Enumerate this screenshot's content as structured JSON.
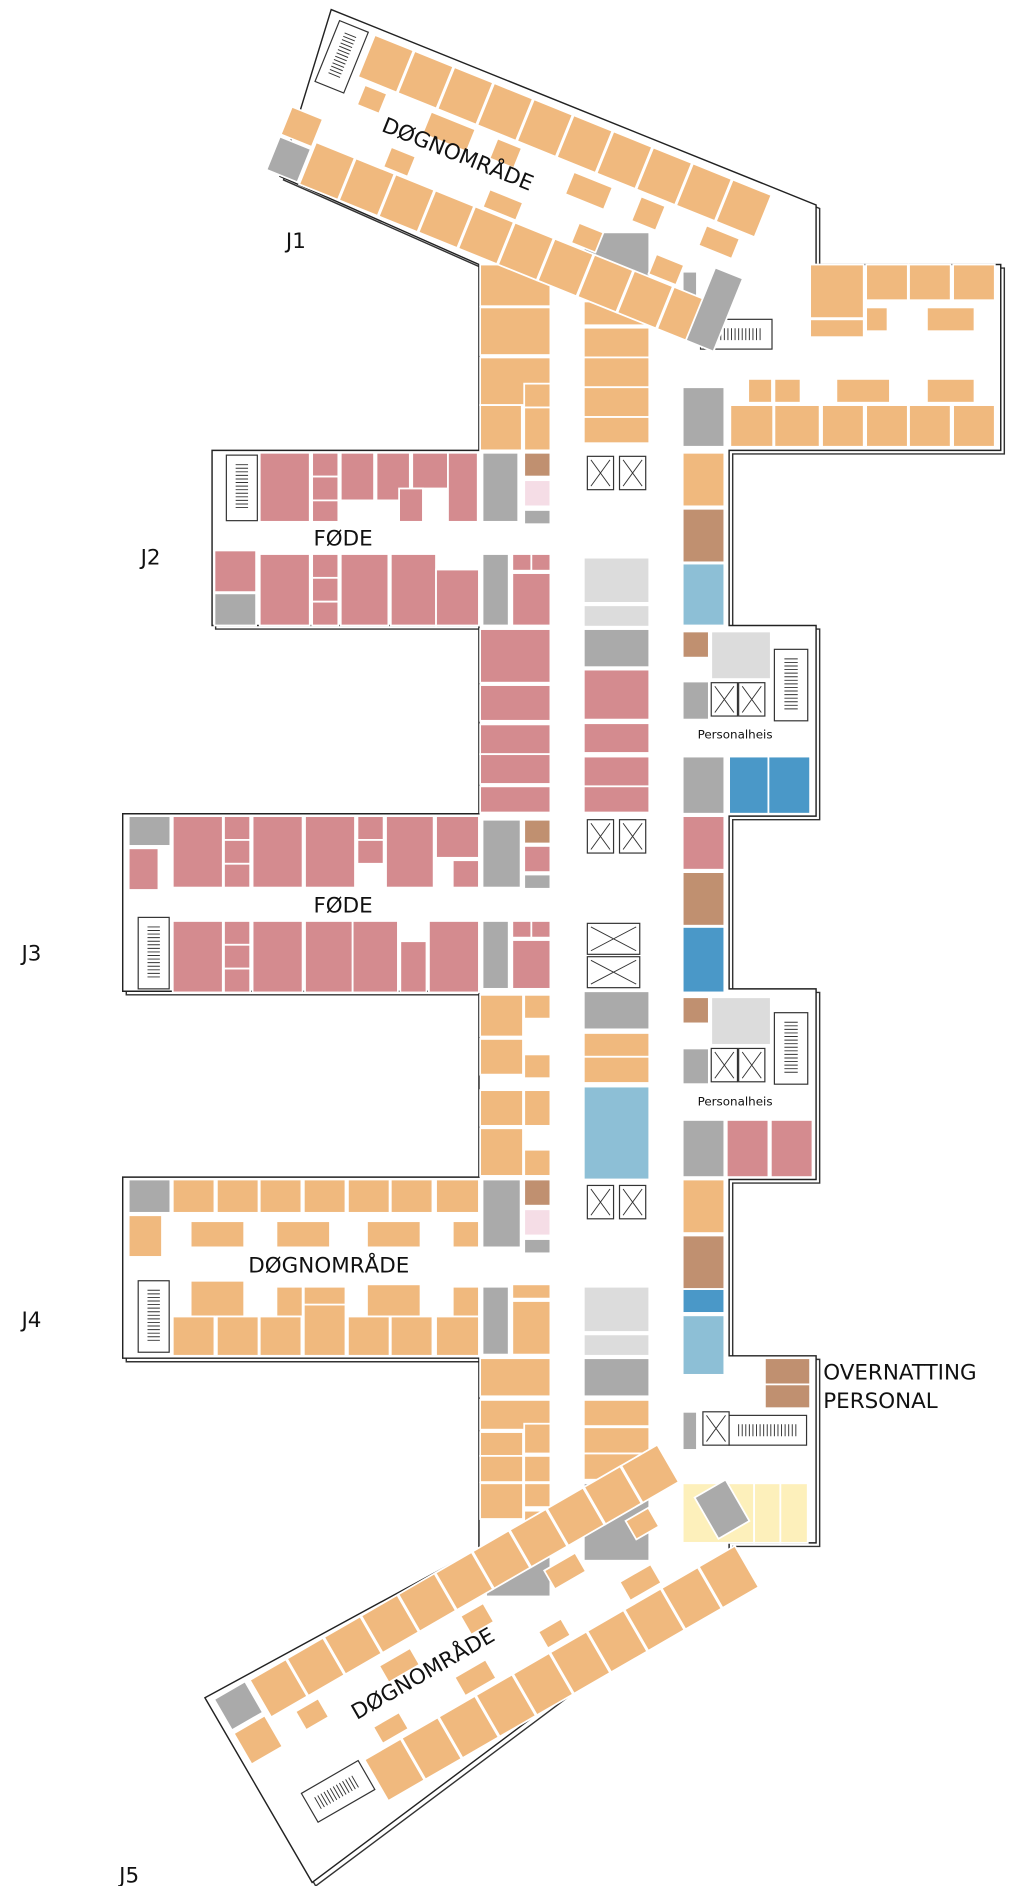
{
  "wing_labels": [
    "J1",
    "J2",
    "J3",
    "J4",
    "J5"
  ],
  "area_labels": [
    "DØGNOMRÅDE",
    "FØDE",
    "FØDE",
    "DØGNOMRÅDE",
    "DØGNOMRÅDE"
  ],
  "elevator_labels": [
    "Personalheis",
    "Personalheis"
  ],
  "staff_quarters": [
    "OVERNATTING",
    "PERSONAL"
  ]
}
